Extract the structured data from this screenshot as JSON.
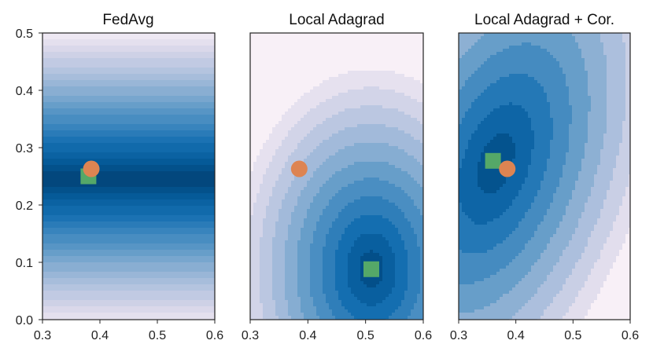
{
  "chart_data": [
    {
      "type": "contour",
      "title": "FedAvg",
      "xlim": [
        0.3,
        0.6
      ],
      "ylim": [
        0.0,
        0.5
      ],
      "xticks": [
        "0.3",
        "0.4",
        "0.5",
        "0.6"
      ],
      "yticks": [
        "0.0",
        "0.1",
        "0.2",
        "0.3",
        "0.4",
        "0.5"
      ],
      "minimum": {
        "x": 0.38,
        "y": 0.25,
        "marker": "square",
        "color": "#55a868"
      },
      "iterate": {
        "x": 0.385,
        "y": 0.263,
        "marker": "circle",
        "color": "#dd8452"
      },
      "field": {
        "kind": "horizontal",
        "cy": 0.245
      },
      "colormap": "PuBu",
      "levels": 22
    },
    {
      "type": "contour",
      "title": "Local Adagrad",
      "xlim": [
        0.3,
        0.6
      ],
      "ylim": [
        0.0,
        0.5
      ],
      "xticks": [
        "0.3",
        "0.4",
        "0.5",
        "0.6"
      ],
      "yticks": [],
      "minimum": {
        "x": 0.51,
        "y": 0.088,
        "marker": "square",
        "color": "#55a868"
      },
      "iterate": {
        "x": 0.385,
        "y": 0.263,
        "marker": "circle",
        "color": "#dd8452"
      },
      "field": {
        "kind": "bowl",
        "cx": 0.51,
        "cy": 0.088,
        "sx": 0.26,
        "sy": 0.38
      },
      "colormap": "PuBu",
      "levels": 12
    },
    {
      "type": "contour",
      "title": "Local Adagrad + Cor.",
      "xlim": [
        0.3,
        0.6
      ],
      "ylim": [
        0.0,
        0.5
      ],
      "xticks": [
        "0.3",
        "0.4",
        "0.5",
        "0.6"
      ],
      "yticks": [],
      "minimum": {
        "x": 0.36,
        "y": 0.277,
        "marker": "square",
        "color": "#55a868"
      },
      "iterate": {
        "x": 0.385,
        "y": 0.263,
        "marker": "circle",
        "color": "#dd8452"
      },
      "field": {
        "kind": "tilted",
        "cx": 0.365,
        "cy": 0.272,
        "sx": 0.3,
        "sy": 0.48,
        "corr": 0.4
      },
      "colormap": "PuBu",
      "levels": 10
    }
  ],
  "colors": {
    "axis": "#222222",
    "minimum_marker": "#55a868",
    "iterate_marker": "#dd8452"
  }
}
